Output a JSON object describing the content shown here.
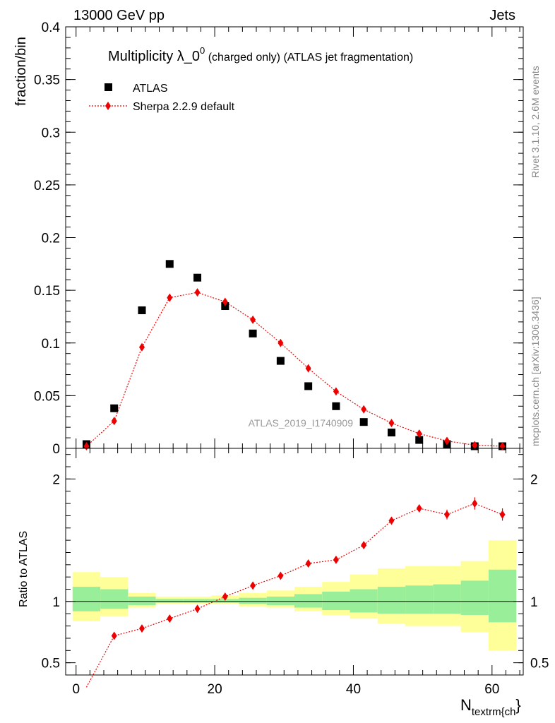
{
  "header": {
    "left": "13000 GeV pp",
    "right": "Jets"
  },
  "side": {
    "rivet": "Rivet 3.1.10,  2.6M events",
    "mcplots": "mcplots.cern.ch [arXiv:1306.3436]"
  },
  "colors": {
    "data": "#000000",
    "mc": "#ee0000",
    "band_stat": "#99ee99",
    "band_total": "#ffff99"
  },
  "chart_data": [
    {
      "type": "scatter",
      "title_main": "Multiplicity λ_0",
      "title_sup": "0",
      "title_rest": " (charged only) (ATLAS jet fragmentation)",
      "ylabel": "fraction/bin",
      "ylim": [
        0,
        0.4
      ],
      "xlim": [
        -1.5,
        64.5
      ],
      "yticks": [
        "0",
        "0.05",
        "0.1",
        "0.15",
        "0.2",
        "0.25",
        "0.3",
        "0.35",
        "0.4"
      ],
      "watermark": "ATLAS_2019_I1740909",
      "legend_position": "top-left",
      "x": [
        1.5,
        5.5,
        9.5,
        13.5,
        17.5,
        21.5,
        25.5,
        29.5,
        33.5,
        37.5,
        41.5,
        45.5,
        49.5,
        53.5,
        57.5,
        61.5
      ],
      "series": [
        {
          "name": "ATLAS",
          "values": [
            0.004,
            0.038,
            0.131,
            0.175,
            0.162,
            0.135,
            0.109,
            0.083,
            0.059,
            0.04,
            0.025,
            0.015,
            0.008,
            0.004,
            0.002,
            0.002
          ]
        },
        {
          "name": "Sherpa 2.2.9 default",
          "values": [
            0.002,
            0.026,
            0.096,
            0.143,
            0.148,
            0.139,
            0.122,
            0.1,
            0.076,
            0.054,
            0.037,
            0.024,
            0.014,
            0.007,
            0.003,
            0.002
          ]
        }
      ]
    },
    {
      "type": "line",
      "ylabel": "Ratio to ATLAS",
      "ylim": [
        0.4,
        2.25
      ],
      "xlim": [
        -1.5,
        64.5
      ],
      "xlabel": "N",
      "xlabel_sub": "textrm{ch",
      "xlabel_tail": "}",
      "yticks": [
        "0.5",
        "1",
        "2"
      ],
      "xticks": [
        "0",
        "20",
        "40",
        "60"
      ],
      "x": [
        1.5,
        5.5,
        9.5,
        13.5,
        17.5,
        21.5,
        25.5,
        29.5,
        33.5,
        37.5,
        41.5,
        45.5,
        49.5,
        53.5,
        57.5,
        61.5
      ],
      "x_edges": [
        -0.5,
        3.5,
        7.5,
        11.5,
        15.5,
        19.5,
        23.5,
        27.5,
        31.5,
        35.5,
        39.5,
        43.5,
        47.5,
        51.5,
        55.5,
        59.5,
        63.5
      ],
      "band_stat_low": [
        0.92,
        0.94,
        0.97,
        0.99,
        0.99,
        0.99,
        0.98,
        0.97,
        0.95,
        0.93,
        0.91,
        0.9,
        0.9,
        0.9,
        0.89,
        0.83
      ],
      "band_stat_high": [
        1.12,
        1.1,
        1.04,
        1.02,
        1.02,
        1.02,
        1.03,
        1.04,
        1.06,
        1.08,
        1.1,
        1.12,
        1.13,
        1.14,
        1.17,
        1.26
      ],
      "band_total_low": [
        0.84,
        0.88,
        0.95,
        0.98,
        0.98,
        0.98,
        0.96,
        0.95,
        0.92,
        0.89,
        0.86,
        0.82,
        0.8,
        0.8,
        0.75,
        0.6
      ],
      "band_total_high": [
        1.24,
        1.2,
        1.07,
        1.04,
        1.04,
        1.05,
        1.07,
        1.09,
        1.12,
        1.16,
        1.22,
        1.27,
        1.29,
        1.29,
        1.33,
        1.5
      ],
      "series": [
        {
          "name": "Sherpa 2.2.9 default",
          "values": [
            0.3,
            0.72,
            0.78,
            0.86,
            0.94,
            1.04,
            1.13,
            1.21,
            1.31,
            1.34,
            1.46,
            1.66,
            1.76,
            1.71,
            1.8,
            1.71
          ],
          "errors": [
            0.05,
            0.01,
            0.01,
            0.01,
            0.01,
            0.01,
            0.01,
            0.01,
            0.01,
            0.02,
            0.02,
            0.02,
            0.03,
            0.04,
            0.05,
            0.05
          ]
        }
      ]
    }
  ]
}
